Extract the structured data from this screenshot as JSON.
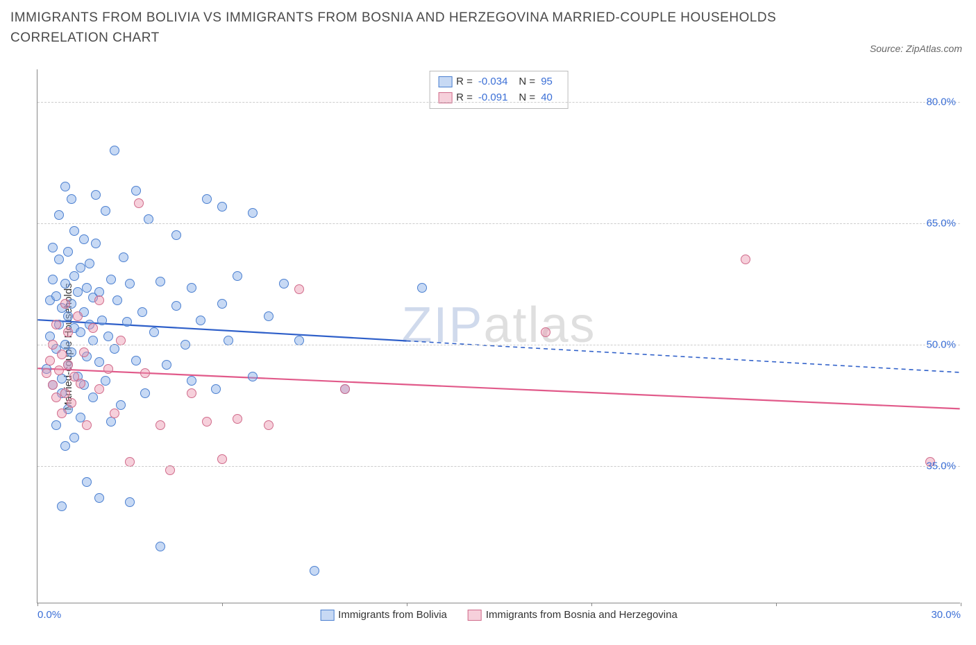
{
  "title": "IMMIGRANTS FROM BOLIVIA VS IMMIGRANTS FROM BOSNIA AND HERZEGOVINA MARRIED-COUPLE HOUSEHOLDS CORRELATION CHART",
  "source": "Source: ZipAtlas.com",
  "ylabel": "Married-couple Households",
  "watermark_a": "ZIP",
  "watermark_b": "atlas",
  "chart": {
    "type": "scatter",
    "background_color": "#ffffff",
    "grid_color": "#cccccc",
    "axis_color": "#888888",
    "tick_color": "#3b6fd6",
    "label_fontsize": 15,
    "title_fontsize": 19,
    "title_color": "#4a4a4a",
    "xlim": [
      0,
      30
    ],
    "ylim": [
      18,
      84
    ],
    "xticks": [
      0,
      6,
      12,
      18,
      24,
      30
    ],
    "xtick_labels": {
      "0": "0.0%",
      "30": "30.0%"
    },
    "yticks": [
      35,
      50,
      65,
      80
    ],
    "ytick_labels": {
      "35": "35.0%",
      "50": "50.0%",
      "65": "65.0%",
      "80": "80.0%"
    },
    "marker_radius": 7,
    "marker_opacity": 0.45,
    "line_width": 2.2
  },
  "series": [
    {
      "key": "bolivia",
      "label": "Immigrants from Bolivia",
      "color": "#6199e8",
      "fill": "rgba(130,170,230,0.45)",
      "stroke": "#4a7fd0",
      "line_color": "#2e5fc9",
      "r_label": "R =",
      "r_value": "-0.034",
      "n_label": "N =",
      "n_value": "95",
      "trend": {
        "x1": 0,
        "y1": 53.0,
        "x2": 30,
        "y2": 46.5,
        "solid_until_x": 12
      },
      "points": [
        [
          0.3,
          47.0
        ],
        [
          0.4,
          51.0
        ],
        [
          0.4,
          55.5
        ],
        [
          0.5,
          45.0
        ],
        [
          0.5,
          58.0
        ],
        [
          0.5,
          62.0
        ],
        [
          0.6,
          49.5
        ],
        [
          0.6,
          56.0
        ],
        [
          0.6,
          40.0
        ],
        [
          0.7,
          52.5
        ],
        [
          0.7,
          60.5
        ],
        [
          0.7,
          66.0
        ],
        [
          0.8,
          30.0
        ],
        [
          0.8,
          44.0
        ],
        [
          0.8,
          45.8
        ],
        [
          0.8,
          54.5
        ],
        [
          0.9,
          37.5
        ],
        [
          0.9,
          50.0
        ],
        [
          0.9,
          57.5
        ],
        [
          0.9,
          69.5
        ],
        [
          1.0,
          42.0
        ],
        [
          1.0,
          47.5
        ],
        [
          1.0,
          53.5
        ],
        [
          1.0,
          61.5
        ],
        [
          1.1,
          55.0
        ],
        [
          1.1,
          49.0
        ],
        [
          1.1,
          68.0
        ],
        [
          1.2,
          38.5
        ],
        [
          1.2,
          52.0
        ],
        [
          1.2,
          58.5
        ],
        [
          1.2,
          64.0
        ],
        [
          1.3,
          46.0
        ],
        [
          1.3,
          56.5
        ],
        [
          1.4,
          41.0
        ],
        [
          1.4,
          51.5
        ],
        [
          1.4,
          59.5
        ],
        [
          1.5,
          45.0
        ],
        [
          1.5,
          54.0
        ],
        [
          1.5,
          63.0
        ],
        [
          1.6,
          33.0
        ],
        [
          1.6,
          48.5
        ],
        [
          1.6,
          57.0
        ],
        [
          1.7,
          52.5
        ],
        [
          1.7,
          60.0
        ],
        [
          1.8,
          43.5
        ],
        [
          1.8,
          50.5
        ],
        [
          1.8,
          55.8
        ],
        [
          1.9,
          62.5
        ],
        [
          1.9,
          68.5
        ],
        [
          2.0,
          31.0
        ],
        [
          2.0,
          47.8
        ],
        [
          2.0,
          56.5
        ],
        [
          2.1,
          53.0
        ],
        [
          2.2,
          66.5
        ],
        [
          2.2,
          45.5
        ],
        [
          2.3,
          51.0
        ],
        [
          2.4,
          58.0
        ],
        [
          2.4,
          40.5
        ],
        [
          2.5,
          74.0
        ],
        [
          2.5,
          49.5
        ],
        [
          2.6,
          55.5
        ],
        [
          2.7,
          42.5
        ],
        [
          2.8,
          60.8
        ],
        [
          2.9,
          52.8
        ],
        [
          3.0,
          30.5
        ],
        [
          3.0,
          57.5
        ],
        [
          3.2,
          48.0
        ],
        [
          3.2,
          69.0
        ],
        [
          3.4,
          54.0
        ],
        [
          3.5,
          44.0
        ],
        [
          3.6,
          65.5
        ],
        [
          3.8,
          51.5
        ],
        [
          4.0,
          57.8
        ],
        [
          4.0,
          25.0
        ],
        [
          4.2,
          47.5
        ],
        [
          4.5,
          54.8
        ],
        [
          4.5,
          63.5
        ],
        [
          4.8,
          50.0
        ],
        [
          5.0,
          45.5
        ],
        [
          5.0,
          57.0
        ],
        [
          5.3,
          53.0
        ],
        [
          5.5,
          68.0
        ],
        [
          5.8,
          44.5
        ],
        [
          6.0,
          67.0
        ],
        [
          6.0,
          55.0
        ],
        [
          6.2,
          50.5
        ],
        [
          6.5,
          58.5
        ],
        [
          7.0,
          46.0
        ],
        [
          7.0,
          66.3
        ],
        [
          7.5,
          53.5
        ],
        [
          8.0,
          57.5
        ],
        [
          8.5,
          50.5
        ],
        [
          9.0,
          22.0
        ],
        [
          10.0,
          44.5
        ],
        [
          12.5,
          57.0
        ]
      ]
    },
    {
      "key": "bosnia",
      "label": "Immigrants from Bosnia and Herzegovina",
      "color": "#e88fa8",
      "fill": "rgba(235,150,175,0.45)",
      "stroke": "#d06a8a",
      "line_color": "#e15a8a",
      "r_label": "R =",
      "r_value": "-0.091",
      "n_label": "N =",
      "n_value": "40",
      "trend": {
        "x1": 0,
        "y1": 47.0,
        "x2": 30,
        "y2": 42.0,
        "solid_until_x": 30
      },
      "points": [
        [
          0.3,
          46.5
        ],
        [
          0.4,
          48.0
        ],
        [
          0.5,
          45.0
        ],
        [
          0.5,
          50.0
        ],
        [
          0.6,
          43.5
        ],
        [
          0.6,
          52.5
        ],
        [
          0.7,
          46.8
        ],
        [
          0.8,
          41.5
        ],
        [
          0.8,
          48.8
        ],
        [
          0.9,
          55.0
        ],
        [
          0.9,
          44.0
        ],
        [
          1.0,
          47.5
        ],
        [
          1.0,
          51.5
        ],
        [
          1.1,
          42.8
        ],
        [
          1.2,
          46.0
        ],
        [
          1.3,
          53.5
        ],
        [
          1.4,
          45.2
        ],
        [
          1.5,
          49.0
        ],
        [
          1.6,
          40.0
        ],
        [
          1.8,
          52.0
        ],
        [
          2.0,
          44.5
        ],
        [
          2.0,
          55.5
        ],
        [
          2.3,
          47.0
        ],
        [
          2.5,
          41.5
        ],
        [
          2.7,
          50.5
        ],
        [
          3.0,
          35.5
        ],
        [
          3.3,
          67.5
        ],
        [
          3.5,
          46.5
        ],
        [
          4.0,
          40.0
        ],
        [
          4.3,
          34.5
        ],
        [
          5.0,
          44.0
        ],
        [
          5.5,
          40.5
        ],
        [
          6.0,
          35.8
        ],
        [
          6.5,
          40.8
        ],
        [
          7.5,
          40.0
        ],
        [
          8.5,
          56.8
        ],
        [
          10.0,
          44.5
        ],
        [
          16.5,
          51.5
        ],
        [
          23.0,
          60.5
        ],
        [
          29.0,
          35.5
        ]
      ]
    }
  ]
}
